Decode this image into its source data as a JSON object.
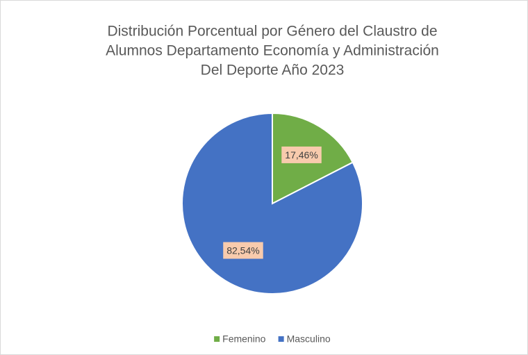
{
  "chart_data": {
    "type": "pie",
    "title": [
      "Distribución Porcentual por Género del Claustro de",
      "Alumnos  Departamento Economía y Administración",
      "Del Deporte  Año 2023"
    ],
    "categories": [
      "Femenino",
      "Masculino"
    ],
    "values": [
      17.46,
      82.54
    ],
    "value_labels": [
      "17,46%",
      "82,54%"
    ],
    "colors": [
      "#70ad47",
      "#4472c4"
    ],
    "legend": "bottom"
  }
}
